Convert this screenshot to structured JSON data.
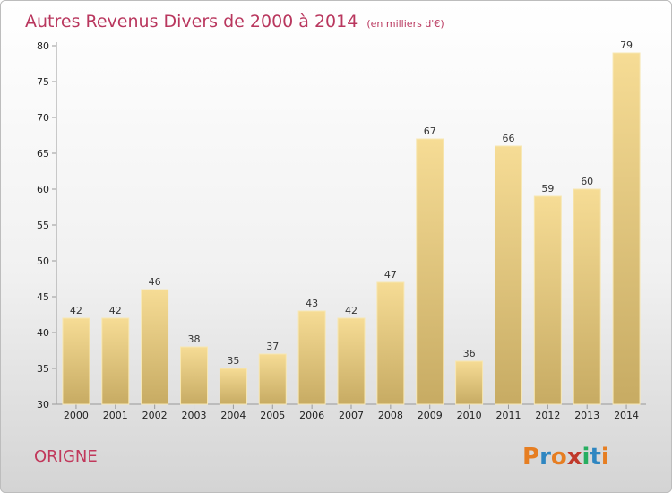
{
  "chart_data": {
    "type": "bar",
    "title": "Autres Revenus Divers de 2000 à 2014",
    "subtitle": "(en milliers d'€)",
    "categories": [
      "2000",
      "2001",
      "2002",
      "2003",
      "2004",
      "2005",
      "2006",
      "2007",
      "2008",
      "2009",
      "2010",
      "2011",
      "2012",
      "2013",
      "2014"
    ],
    "values": [
      42,
      42,
      46,
      38,
      35,
      37,
      43,
      42,
      47,
      67,
      36,
      66,
      59,
      60,
      79
    ],
    "ylim": [
      30,
      80
    ],
    "yticks": [
      30,
      35,
      40,
      45,
      50,
      55,
      60,
      65,
      70,
      75,
      80
    ],
    "grid": false,
    "bar_color": "#e8c97a"
  },
  "footer": {
    "place": "ORIGNE",
    "logo_text": "Proxiti",
    "logo_colors": [
      "#e67e22",
      "#2e86c1",
      "#e67e22",
      "#c0392b",
      "#27ae60",
      "#2e86c1",
      "#e67e22"
    ]
  }
}
